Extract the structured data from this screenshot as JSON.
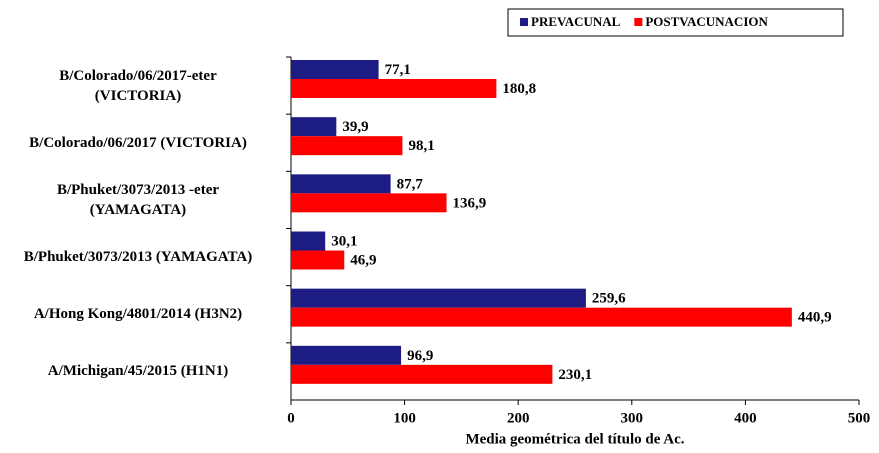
{
  "chart_data": {
    "type": "hbar",
    "x_label": "Media geométrica del título de Ac.",
    "categories": [
      "B/Colorado/06/2017-eter\n(VICTORIA)",
      "B/Colorado/06/2017 (VICTORIA)",
      "B/Phuket/3073/2013 -eter\n(YAMAGATA)",
      "B/Phuket/3073/2013 (YAMAGATA)",
      "A/Hong Kong/4801/2014 (H3N2)",
      "A/Michigan/45/2015 (H1N1)"
    ],
    "series": [
      {
        "name": "PREVACUNAL",
        "color": "#1c1c84",
        "values": [
          77.1,
          39.9,
          87.7,
          30.1,
          259.6,
          96.9
        ],
        "value_labels": [
          "77,1",
          "39,9",
          "87,7",
          "30,1",
          "259,6",
          "96,9"
        ]
      },
      {
        "name": "POSTVACUNACION",
        "color": "#ff0000",
        "values": [
          180.8,
          98.1,
          136.9,
          46.9,
          440.9,
          230.1
        ],
        "value_labels": [
          "180,8",
          "98,1",
          "136,9",
          "46,9",
          "440,9",
          "230,1"
        ]
      }
    ],
    "xlim": [
      0,
      500
    ],
    "xticks": [
      0,
      100,
      200,
      300,
      400,
      500
    ],
    "legend": "top-right"
  }
}
